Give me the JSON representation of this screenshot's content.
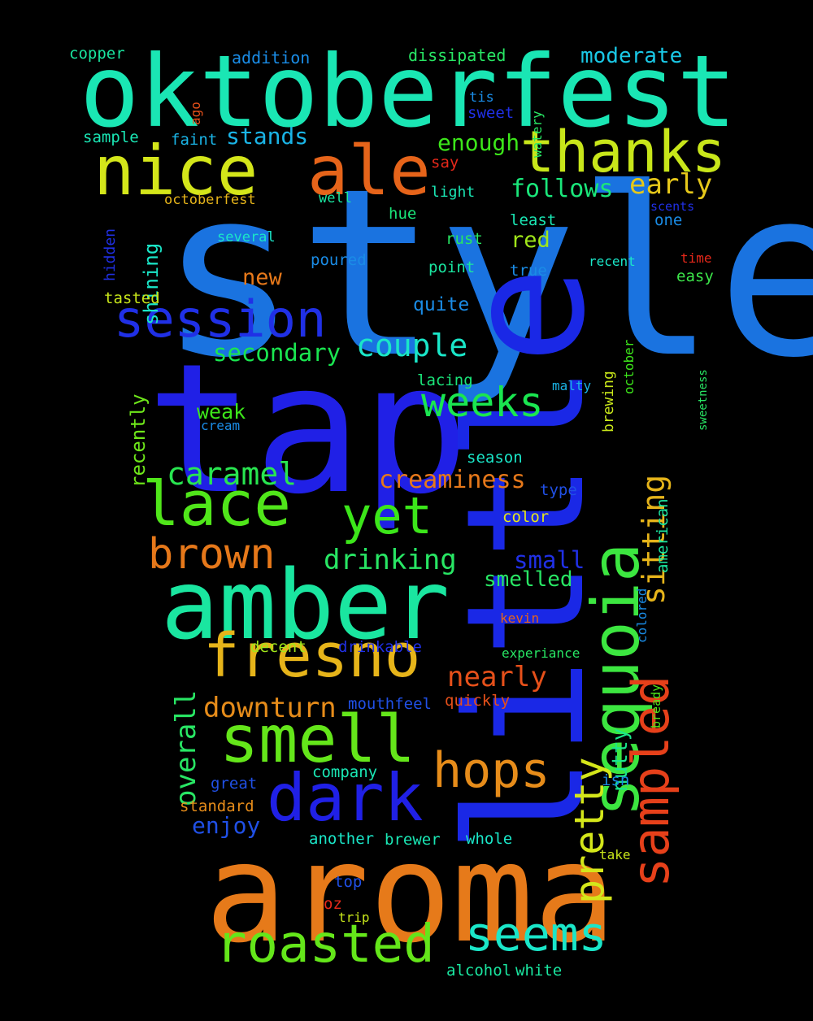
{
  "words": [
    {
      "text": "style",
      "color": "#1a73e0"
    },
    {
      "text": "tap",
      "color": "#2020e6"
    },
    {
      "text": "little",
      "color": "#1a28e6"
    },
    {
      "text": "aroma",
      "color": "#e67a1a"
    },
    {
      "text": "oktoberfest",
      "color": "#1ae6b4"
    },
    {
      "text": "amber",
      "color": "#1ae6a0"
    },
    {
      "text": "sequoia",
      "color": "#3ce640"
    },
    {
      "text": "nice",
      "color": "#d4e61a"
    },
    {
      "text": "ale",
      "color": "#e6641a"
    },
    {
      "text": "thanks",
      "color": "#c8e61a"
    },
    {
      "text": "sampled",
      "color": "#e6401a"
    },
    {
      "text": "session",
      "color": "#2030e6"
    },
    {
      "text": "lace",
      "color": "#50e61a"
    },
    {
      "text": "fresno",
      "color": "#e6b41a"
    },
    {
      "text": "smell",
      "color": "#64e61a"
    },
    {
      "text": "dark",
      "color": "#2020e6"
    },
    {
      "text": "roasted",
      "color": "#64e61a"
    },
    {
      "text": "seems",
      "color": "#1ae6c8"
    },
    {
      "text": "hops",
      "color": "#e68c1a"
    },
    {
      "text": "pretty",
      "color": "#d4e61a"
    },
    {
      "text": "weeks",
      "color": "#1ae650"
    },
    {
      "text": "yet",
      "color": "#3ce61a"
    },
    {
      "text": "brown",
      "color": "#e6781a"
    },
    {
      "text": "couple",
      "color": "#1ae6c8"
    },
    {
      "text": "caramel",
      "color": "#28e650"
    },
    {
      "text": "sitting",
      "color": "#e6b41a"
    },
    {
      "text": "drinking",
      "color": "#28e664"
    },
    {
      "text": "downturn",
      "color": "#e68c1a"
    },
    {
      "text": "nearly",
      "color": "#e6501a"
    },
    {
      "text": "overall",
      "color": "#28e664"
    },
    {
      "text": "creaminess",
      "color": "#e6781a"
    },
    {
      "text": "secondary",
      "color": "#1ae650"
    },
    {
      "text": "follows",
      "color": "#1ae67a"
    },
    {
      "text": "early",
      "color": "#e6c81a"
    },
    {
      "text": "enough",
      "color": "#3ce61a"
    },
    {
      "text": "stands",
      "color": "#1ab4e6"
    },
    {
      "text": "moderate",
      "color": "#1ac8e6"
    },
    {
      "text": "small",
      "color": "#2030e6"
    },
    {
      "text": "smelled",
      "color": "#28e664"
    },
    {
      "text": "nutty",
      "color": "#1ae68c"
    },
    {
      "text": "enjoy",
      "color": "#2050e6"
    },
    {
      "text": "red",
      "color": "#a0e61a"
    },
    {
      "text": "new",
      "color": "#e6781a"
    },
    {
      "text": "weak",
      "color": "#3ce61a"
    },
    {
      "text": "shining",
      "color": "#1ae6c8"
    },
    {
      "text": "recently",
      "color": "#6ee61a"
    },
    {
      "text": "quite",
      "color": "#1a8ce6"
    },
    {
      "text": "american",
      "color": "#1ae6a0"
    },
    {
      "text": "brewing",
      "color": "#c8e61a"
    },
    {
      "text": "dissipated",
      "color": "#28e664"
    },
    {
      "text": "addition",
      "color": "#1a8ce6"
    },
    {
      "text": "copper",
      "color": "#1ae6a0"
    },
    {
      "text": "sample",
      "color": "#1ae6b4"
    },
    {
      "text": "faint",
      "color": "#1ab4e6"
    },
    {
      "text": "sweet",
      "color": "#2030e6"
    },
    {
      "text": "tis",
      "color": "#1a8ce6"
    },
    {
      "text": "watery",
      "color": "#28e664"
    },
    {
      "text": "ago",
      "color": "#e6501a"
    },
    {
      "text": "say",
      "color": "#e6281a"
    },
    {
      "text": "light",
      "color": "#1ae6b4"
    },
    {
      "text": "well",
      "color": "#1ae6a0"
    },
    {
      "text": "octoberfest",
      "color": "#e6b41a"
    },
    {
      "text": "hidden",
      "color": "#2030e6"
    },
    {
      "text": "several",
      "color": "#1ae6c8"
    },
    {
      "text": "hue",
      "color": "#1ae67a"
    },
    {
      "text": "rust",
      "color": "#28e664"
    },
    {
      "text": "poured",
      "color": "#1a8ce6"
    },
    {
      "text": "point",
      "color": "#1ae6a0"
    },
    {
      "text": "least",
      "color": "#1ae6b4"
    },
    {
      "text": "true",
      "color": "#1a8ce6"
    },
    {
      "text": "one",
      "color": "#1a8ce6"
    },
    {
      "text": "scents",
      "color": "#2030e6"
    },
    {
      "text": "recent",
      "color": "#1ae6c8"
    },
    {
      "text": "time",
      "color": "#e6281a"
    },
    {
      "text": "easy",
      "color": "#3ce64a"
    },
    {
      "text": "tasted",
      "color": "#c8e61a"
    },
    {
      "text": "lacing",
      "color": "#1ae67a"
    },
    {
      "text": "malty",
      "color": "#1ab4e6"
    },
    {
      "text": "october",
      "color": "#3ce61a"
    },
    {
      "text": "sweetness",
      "color": "#28e664"
    },
    {
      "text": "cream",
      "color": "#1a8ce6"
    },
    {
      "text": "season",
      "color": "#1ae6c8"
    },
    {
      "text": "type",
      "color": "#2050e6"
    },
    {
      "text": "color",
      "color": "#e6e61a"
    },
    {
      "text": "colored",
      "color": "#1a8ce6"
    },
    {
      "text": "kevin",
      "color": "#e6641a"
    },
    {
      "text": "decent",
      "color": "#a0e61a"
    },
    {
      "text": "drinkable",
      "color": "#2030e6"
    },
    {
      "text": "experiance",
      "color": "#28e664"
    },
    {
      "text": "bready",
      "color": "#50e61a"
    },
    {
      "text": "mouthfeel",
      "color": "#2050e6"
    },
    {
      "text": "quickly",
      "color": "#e6501a"
    },
    {
      "text": "company",
      "color": "#1ae6b4"
    },
    {
      "text": "great",
      "color": "#2050e6"
    },
    {
      "text": "isn",
      "color": "#1a8ce6"
    },
    {
      "text": "standard",
      "color": "#e68c1a"
    },
    {
      "text": "another",
      "color": "#1ae6c8"
    },
    {
      "text": "brewer",
      "color": "#1ae6b4"
    },
    {
      "text": "whole",
      "color": "#1ae6c8"
    },
    {
      "text": "take",
      "color": "#c8e61a"
    },
    {
      "text": "top",
      "color": "#2050e6"
    },
    {
      "text": "oz",
      "color": "#e6281a"
    },
    {
      "text": "trip",
      "color": "#c8e61a"
    },
    {
      "text": "alcohol",
      "color": "#1ae6a0"
    },
    {
      "text": "white",
      "color": "#1ae6a0"
    }
  ]
}
